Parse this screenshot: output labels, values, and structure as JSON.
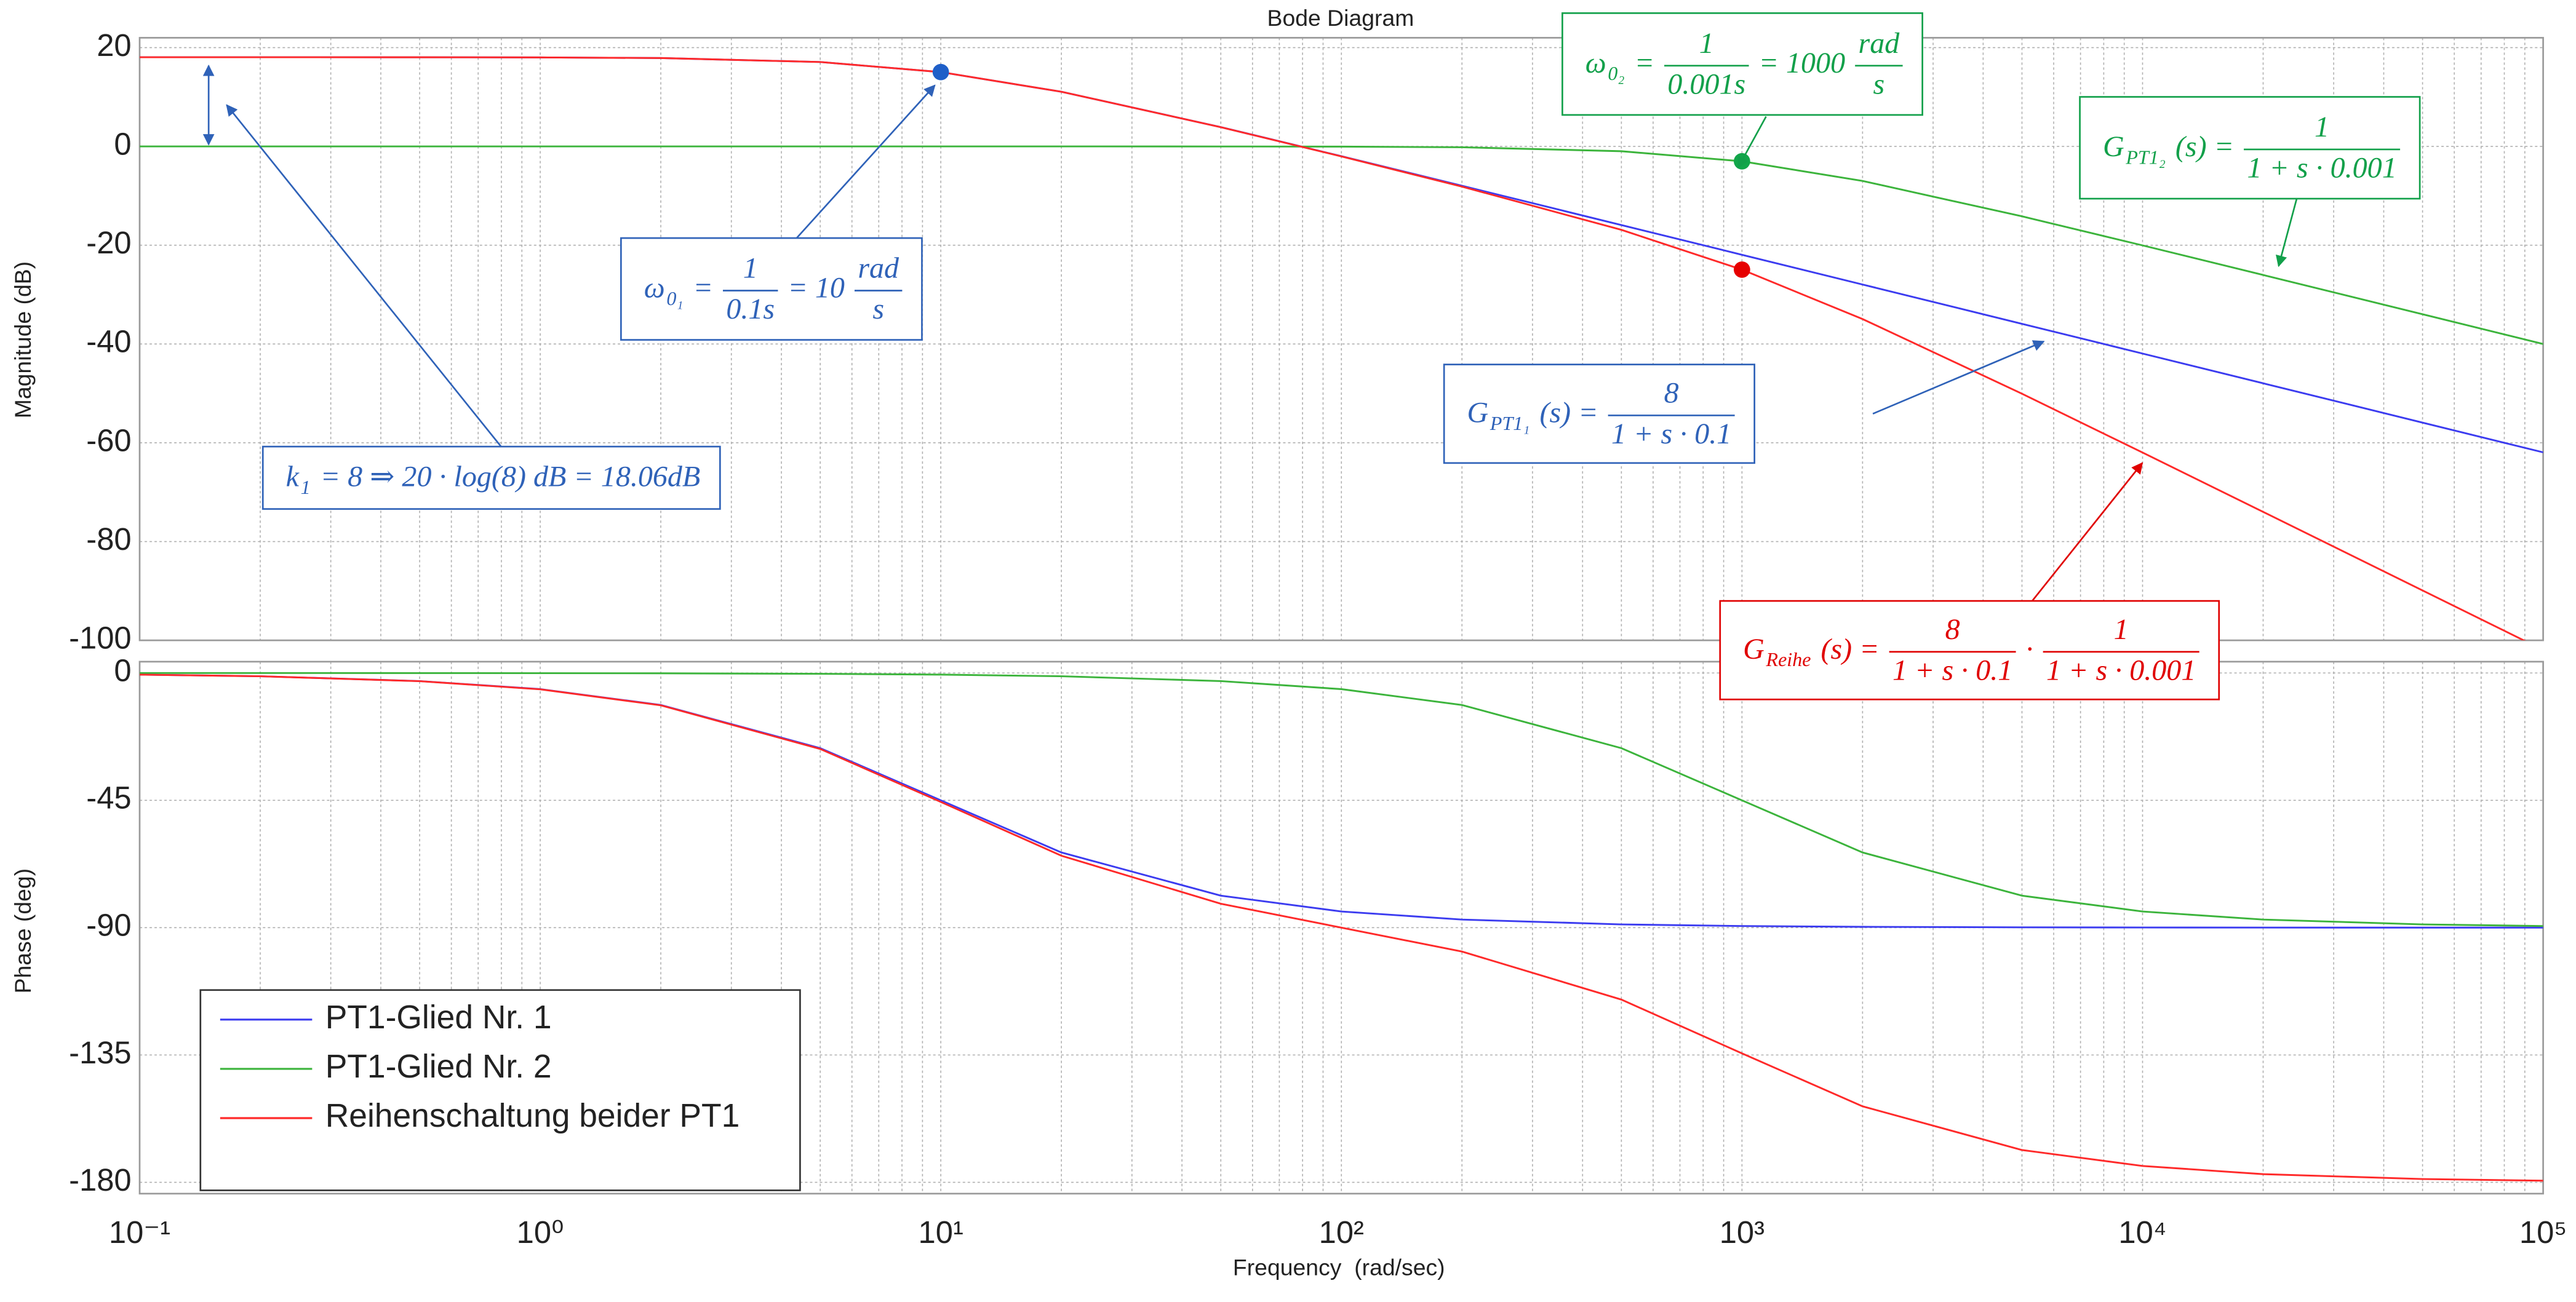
{
  "chart_data": [
    {
      "type": "line",
      "title": "Bode Diagram",
      "y_label": "Magnitude (dB)",
      "log_x": true,
      "grid": true,
      "xlim": [
        0.1,
        100000
      ],
      "xticks": [
        0.1,
        1,
        10,
        100,
        1000,
        10000,
        100000
      ],
      "xminor": [
        0.2,
        0.3,
        0.4,
        0.5,
        0.6,
        0.7,
        0.8,
        0.9,
        2,
        3,
        4,
        5,
        6,
        7,
        8,
        9,
        20,
        30,
        40,
        50,
        60,
        70,
        80,
        90,
        200,
        300,
        400,
        500,
        600,
        700,
        800,
        900,
        2000,
        3000,
        4000,
        5000,
        6000,
        7000,
        8000,
        9000,
        20000,
        30000,
        40000,
        50000,
        60000,
        70000,
        80000,
        90000
      ],
      "ylim": [
        -100,
        22
      ],
      "yticks": [
        20,
        0,
        -20,
        -40,
        -60,
        -80,
        -100
      ],
      "x": [
        0.1,
        0.2,
        0.5,
        1,
        2,
        5,
        10,
        20,
        50,
        100,
        200,
        500,
        1000,
        2000,
        5000,
        10000,
        20000,
        50000,
        100000
      ],
      "series": [
        {
          "color": "#3c3cf0",
          "values": [
            18.06,
            18.06,
            18.05,
            18.02,
            17.89,
            17.09,
            15.05,
            11.07,
            3.91,
            -1.98,
            -7.97,
            -15.92,
            -21.94,
            -27.96,
            -35.92,
            -41.94,
            -47.96,
            -55.92,
            -61.94
          ]
        },
        {
          "color": "#3cb43c",
          "values": [
            0,
            0,
            0,
            0,
            0,
            0,
            0,
            0,
            -0.01,
            -0.04,
            -0.17,
            -0.97,
            -3.01,
            -6.99,
            -14.15,
            -20.04,
            -26.03,
            -33.98,
            -40.0
          ]
        },
        {
          "color": "#ff2a2a",
          "values": [
            18.06,
            18.06,
            18.05,
            18.02,
            17.89,
            17.09,
            15.05,
            11.07,
            3.9,
            -2.02,
            -8.14,
            -16.89,
            -24.95,
            -34.95,
            -50.07,
            -61.98,
            -73.99,
            -89.9,
            -101.94
          ]
        }
      ],
      "points": [
        {
          "x": 10,
          "y": 15.05,
          "color": "#1f5fc8"
        },
        {
          "x": 1000,
          "y": -3.01,
          "color": "#12a64a"
        },
        {
          "x": 1000,
          "y": -24.95,
          "color": "#e60000"
        }
      ],
      "annotations": [
        {
          "color": "#2f62b8",
          "parts": [
            {
              "text": "ω"
            },
            {
              "sub": "0₁"
            },
            {
              "text": "="
            },
            {
              "num": "1",
              "den": "0.1s"
            },
            {
              "text": "= 10"
            },
            {
              "num": "rad",
              "den": "s"
            }
          ]
        },
        {
          "color": "#2f62b8",
          "parts": [
            {
              "text": "k"
            },
            {
              "sub": "1"
            },
            {
              "text": "= 8 ⇒ 20 · log(8) dB = 18.06dB"
            }
          ]
        },
        {
          "color": "#12a04a",
          "parts": [
            {
              "text": "ω"
            },
            {
              "sub": "0₂"
            },
            {
              "text": "="
            },
            {
              "num": "1",
              "den": "0.001s"
            },
            {
              "text": "= 1000"
            },
            {
              "num": "rad",
              "den": "s"
            }
          ]
        },
        {
          "color": "#12a04a",
          "parts": [
            {
              "text": "G"
            },
            {
              "sub": "PT1₂"
            },
            {
              "text": "(s) ="
            },
            {
              "num": "1",
              "den": "1 + s · 0.001"
            }
          ]
        },
        {
          "color": "#2f62b8",
          "parts": [
            {
              "text": "G"
            },
            {
              "sub": "PT1₁"
            },
            {
              "text": "(s) ="
            },
            {
              "num": "8",
              "den": "1 + s · 0.1"
            }
          ]
        },
        {
          "color": "#e00000",
          "parts": [
            {
              "text": "G"
            },
            {
              "sub": "Reihe"
            },
            {
              "text": "(s) ="
            },
            {
              "num": "8",
              "den": "1 + s · 0.1"
            },
            {
              "text": "·"
            },
            {
              "num": "1",
              "den": "1 + s · 0.001"
            }
          ]
        }
      ]
    },
    {
      "type": "line",
      "y_label": "Phase (deg)",
      "x_label": "Frequency  (rad/sec)",
      "log_x": true,
      "grid": true,
      "legend": "lower-left",
      "xlim": [
        0.1,
        100000
      ],
      "xticks": [
        {
          "value": 0.1,
          "label": "10⁻¹"
        },
        {
          "value": 1,
          "label": "10⁰"
        },
        {
          "value": 10,
          "label": "10¹"
        },
        {
          "value": 100,
          "label": "10²"
        },
        {
          "value": 1000,
          "label": "10³"
        },
        {
          "value": 10000,
          "label": "10⁴"
        },
        {
          "value": 100000,
          "label": "10⁵"
        }
      ],
      "xminor": [
        0.2,
        0.3,
        0.4,
        0.5,
        0.6,
        0.7,
        0.8,
        0.9,
        2,
        3,
        4,
        5,
        6,
        7,
        8,
        9,
        20,
        30,
        40,
        50,
        60,
        70,
        80,
        90,
        200,
        300,
        400,
        500,
        600,
        700,
        800,
        900,
        2000,
        3000,
        4000,
        5000,
        6000,
        7000,
        8000,
        9000,
        20000,
        30000,
        40000,
        50000,
        60000,
        70000,
        80000,
        90000
      ],
      "ylim": [
        -184,
        4
      ],
      "yticks": [
        0,
        -45,
        -90,
        -135,
        -180
      ],
      "x": [
        0.1,
        0.2,
        0.5,
        1,
        2,
        5,
        10,
        20,
        50,
        100,
        200,
        500,
        1000,
        2000,
        5000,
        10000,
        20000,
        50000,
        100000
      ],
      "series": [
        {
          "name": "PT1-Glied Nr. 1",
          "color": "#3c3cf0",
          "values": [
            -0.57,
            -1.15,
            -2.86,
            -5.71,
            -11.31,
            -26.57,
            -45,
            -63.43,
            -78.69,
            -84.29,
            -87.14,
            -88.85,
            -89.43,
            -89.71,
            -89.89,
            -89.94,
            -89.97,
            -89.99,
            -89.99
          ]
        },
        {
          "name": "PT1-Glied Nr. 2",
          "color": "#3cb43c",
          "values": [
            -0.01,
            -0.01,
            -0.03,
            -0.06,
            -0.11,
            -0.29,
            -0.57,
            -1.15,
            -2.86,
            -5.71,
            -11.31,
            -26.57,
            -45,
            -63.43,
            -78.69,
            -84.29,
            -87.14,
            -88.85,
            -89.43
          ]
        },
        {
          "name": "Reihenschaltung beider PT1",
          "color": "#ff2a2a",
          "values": [
            -0.58,
            -1.16,
            -2.89,
            -5.77,
            -11.42,
            -26.86,
            -45.57,
            -64.58,
            -81.55,
            -90.0,
            -98.45,
            -115.42,
            -134.43,
            -153.14,
            -168.58,
            -174.23,
            -177.11,
            -178.84,
            -179.42
          ]
        }
      ]
    }
  ]
}
